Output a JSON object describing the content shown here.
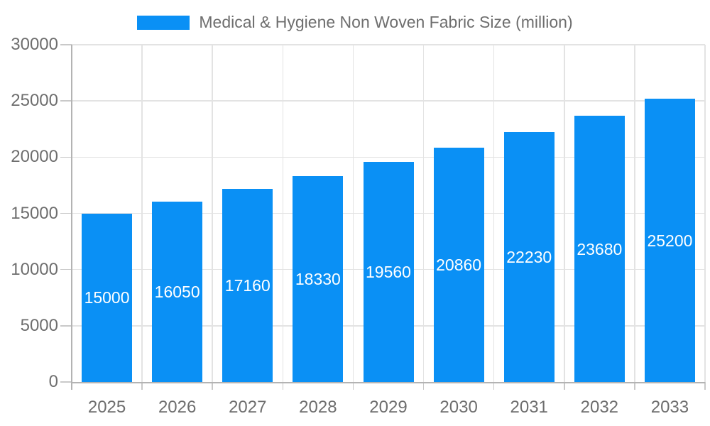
{
  "legend": {
    "label": "Medical & Hygiene Non Woven Fabric Size (million)"
  },
  "chart_data": {
    "type": "bar",
    "title": "Medical & Hygiene Non Woven Fabric Size (million)",
    "categories": [
      "2025",
      "2026",
      "2027",
      "2028",
      "2029",
      "2030",
      "2031",
      "2032",
      "2033"
    ],
    "series": [
      {
        "name": "Medical & Hygiene Non Woven Fabric Size (million)",
        "values": [
          15000,
          16050,
          17160,
          18330,
          19560,
          20860,
          22230,
          23680,
          25200
        ]
      }
    ],
    "bar_value_labels": [
      "15000",
      "16050",
      "17160",
      "18330",
      "19560",
      "20860",
      "22230",
      "23680",
      "25200"
    ],
    "xlabel": "",
    "ylabel": "",
    "ylim": [
      0,
      30000
    ],
    "ytick_step": 5000,
    "ytick_labels": [
      "0",
      "5000",
      "10000",
      "15000",
      "20000",
      "25000",
      "30000"
    ],
    "grid": "horizontal and vertical boundary gridlines, on",
    "legend_position": "top-center"
  },
  "colors": {
    "bar": "#0a90f5",
    "grid": "#e3e3e3",
    "axis": "#b3b3b3",
    "tick": "#c9c9c9",
    "text": "#6e6e6e",
    "bar_label": "#ffffff",
    "background": "#ffffff"
  }
}
